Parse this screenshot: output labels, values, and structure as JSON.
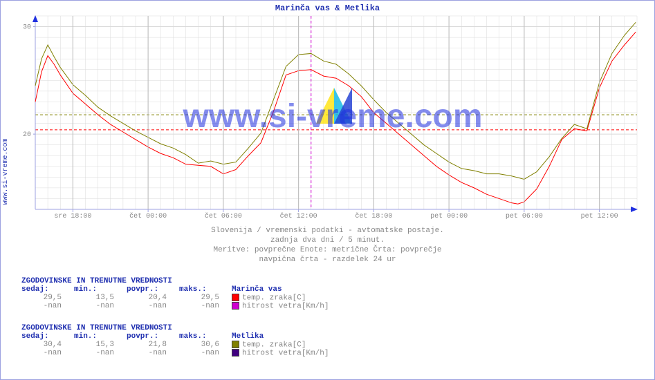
{
  "side_label": "www.si-vreme.com",
  "title": "Marinča vas & Metlika",
  "watermark": "www.si-vreme.com",
  "caption_lines": [
    "Slovenija / vremenski podatki - avtomatske postaje.",
    "zadnja dva dni / 5 minut.",
    "Meritve: povprečne  Enote: metrične  Črta: povprečje",
    "navpična črta - razdelek 24 ur"
  ],
  "chart": {
    "type": "line",
    "xlim": [
      0,
      48
    ],
    "ylim": [
      13,
      31
    ],
    "x_tick_positions": [
      3,
      9,
      15,
      21,
      27,
      33,
      39,
      45
    ],
    "x_tick_labels": [
      "sre 18:00",
      "čet 00:00",
      "čet 06:00",
      "čet 12:00",
      "čet 18:00",
      "pet 00:00",
      "pet 06:00",
      "pet 12:00"
    ],
    "y_tick_positions": [
      20,
      30
    ],
    "y_tick_labels": [
      "20",
      "30"
    ],
    "grid_color": "#dadada",
    "axis_color": "#9ca0e0",
    "background_color": "#ffffff",
    "hline_dash_color_red": "#ff0000",
    "hline_dash_color_olive": "#808000",
    "hline_red_avg": 20.4,
    "hline_olive_avg": 21.8,
    "vline_24h_x": 22.0,
    "vline_color": "#d000d0",
    "arrow_color": "#2030e0",
    "series": [
      {
        "name": "Marinča vas temp",
        "color": "#ff0000",
        "line_width": 1,
        "x": [
          0,
          0.5,
          1,
          1.5,
          2,
          3,
          4,
          5,
          6,
          7,
          8,
          9,
          10,
          11,
          12,
          13,
          14,
          15,
          16,
          17,
          18,
          19,
          20,
          21,
          22,
          23,
          24,
          25,
          26,
          27,
          28,
          29,
          30,
          31,
          32,
          33,
          34,
          35,
          36,
          37,
          38,
          38.5,
          39,
          40,
          41,
          42,
          43,
          44,
          45,
          46,
          47,
          47.9
        ],
        "y": [
          23,
          25.8,
          27.3,
          26.5,
          25.5,
          23.8,
          22.8,
          21.8,
          20.9,
          20.2,
          19.5,
          18.8,
          18.2,
          17.8,
          17.2,
          17.1,
          17.0,
          16.3,
          16.7,
          18.0,
          19.2,
          22.1,
          25.5,
          25.9,
          26.0,
          25.4,
          25.2,
          24.5,
          23.5,
          22.0,
          21.0,
          20.0,
          19.0,
          18.0,
          17.0,
          16.2,
          15.5,
          15.0,
          14.4,
          14.0,
          13.6,
          13.5,
          13.7,
          14.9,
          17.0,
          19.5,
          20.5,
          20.3,
          24.3,
          26.8,
          28.3,
          29.5
        ]
      },
      {
        "name": "Metlika temp",
        "color": "#808000",
        "line_width": 1,
        "x": [
          0,
          0.5,
          1,
          1.5,
          2,
          3,
          4,
          5,
          6,
          7,
          8,
          9,
          10,
          11,
          12,
          13,
          14,
          15,
          16,
          17,
          18,
          19,
          20,
          21,
          22,
          23,
          24,
          25,
          26,
          27,
          28,
          29,
          30,
          31,
          32,
          33,
          34,
          35,
          36,
          37,
          38,
          39,
          40,
          41,
          42,
          43,
          44,
          45,
          46,
          47,
          47.9
        ],
        "y": [
          24.5,
          27.0,
          28.3,
          27.2,
          26.2,
          24.6,
          23.6,
          22.5,
          21.7,
          21.0,
          20.3,
          19.7,
          19.1,
          18.7,
          18.1,
          17.3,
          17.5,
          17.2,
          17.4,
          18.7,
          20.1,
          23.2,
          26.3,
          27.4,
          27.5,
          26.8,
          26.5,
          25.6,
          24.5,
          23.2,
          22.0,
          21.0,
          20.0,
          19.0,
          18.2,
          17.4,
          16.8,
          16.6,
          16.3,
          16.3,
          16.1,
          15.8,
          16.5,
          17.9,
          19.6,
          20.9,
          20.5,
          24.8,
          27.5,
          29.2,
          30.4
        ]
      }
    ]
  },
  "stats_header": "ZGODOVINSKE IN TRENUTNE VREDNOSTI",
  "stats_cols": [
    "sedaj:",
    "min.:",
    "povpr.:",
    "maks.:"
  ],
  "stations": [
    {
      "name": "Marinča vas",
      "rows": [
        {
          "vals": [
            "29,5",
            "13,5",
            "20,4",
            "29,5"
          ],
          "metric": "temp. zraka[C]",
          "swatch": "#ff0000"
        },
        {
          "vals": [
            "-nan",
            "-nan",
            "-nan",
            "-nan"
          ],
          "metric": "hitrost vetra[Km/h]",
          "swatch": "#d000d0"
        }
      ]
    },
    {
      "name": "Metlika",
      "rows": [
        {
          "vals": [
            "30,4",
            "15,3",
            "21,8",
            "30,6"
          ],
          "metric": "temp. zraka[C]",
          "swatch": "#808000"
        },
        {
          "vals": [
            "-nan",
            "-nan",
            "-nan",
            "-nan"
          ],
          "metric": "hitrost vetra[Km/h]",
          "swatch": "#400080"
        }
      ]
    }
  ]
}
